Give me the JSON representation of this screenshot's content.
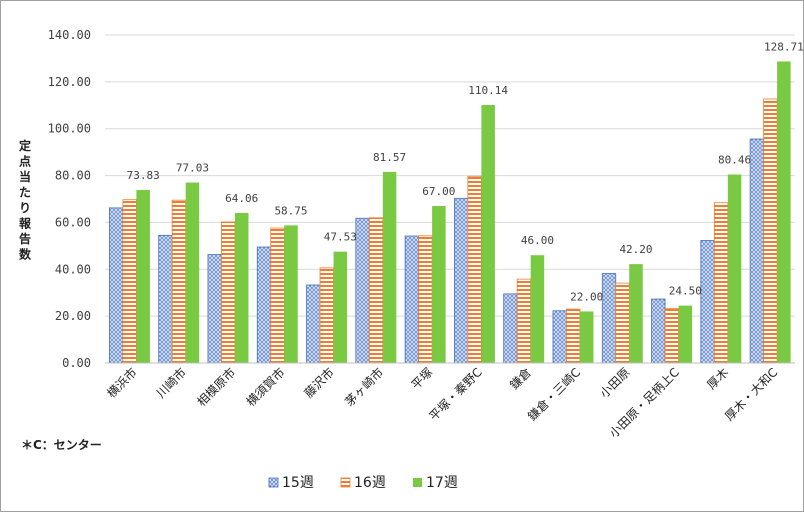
{
  "chart_data": {
    "type": "bar",
    "ylabel": "定点当たり報告数",
    "ylim": [
      0,
      140
    ],
    "yticks": [
      "0.00",
      "20.00",
      "40.00",
      "60.00",
      "80.00",
      "100.00",
      "120.00",
      "140.00"
    ],
    "grid": true,
    "legend_position": "bottom",
    "note": "＊C：センター",
    "categories": [
      "横浜市",
      "川崎市",
      "相模原市",
      "横須賀市",
      "藤沢市",
      "茅ヶ崎市",
      "平塚",
      "平塚・秦野C",
      "鎌倉",
      "鎌倉・三崎C",
      "小田原",
      "小田原・足柄上C",
      "厚木",
      "厚木・大和C"
    ],
    "series": [
      {
        "name": "15週",
        "color": "#4472c4",
        "pattern": "dotted",
        "values": [
          66.2,
          54.5,
          46.3,
          49.5,
          33.3,
          61.8,
          54.2,
          70.3,
          29.5,
          22.3,
          38.2,
          27.3,
          52.3,
          95.6
        ]
      },
      {
        "name": "16週",
        "color": "#ed7d31",
        "pattern": "horizontal-stripes",
        "values": [
          69.7,
          69.5,
          60.2,
          57.6,
          40.6,
          62.0,
          54.3,
          79.7,
          35.8,
          23.0,
          34.1,
          23.2,
          68.4,
          112.7
        ]
      },
      {
        "name": "17週",
        "color": "#7ac943",
        "pattern": "solid",
        "values": [
          73.83,
          77.03,
          64.06,
          58.75,
          47.53,
          81.57,
          67.0,
          110.14,
          46.0,
          22.0,
          42.2,
          24.5,
          80.46,
          128.71
        ],
        "labels": [
          "73.83",
          "77.03",
          "64.06",
          "58.75",
          "47.53",
          "81.57",
          "67.00",
          "110.14",
          "46.00",
          "22.00",
          "42.20",
          "24.50",
          "80.46",
          "128.71"
        ]
      }
    ]
  }
}
